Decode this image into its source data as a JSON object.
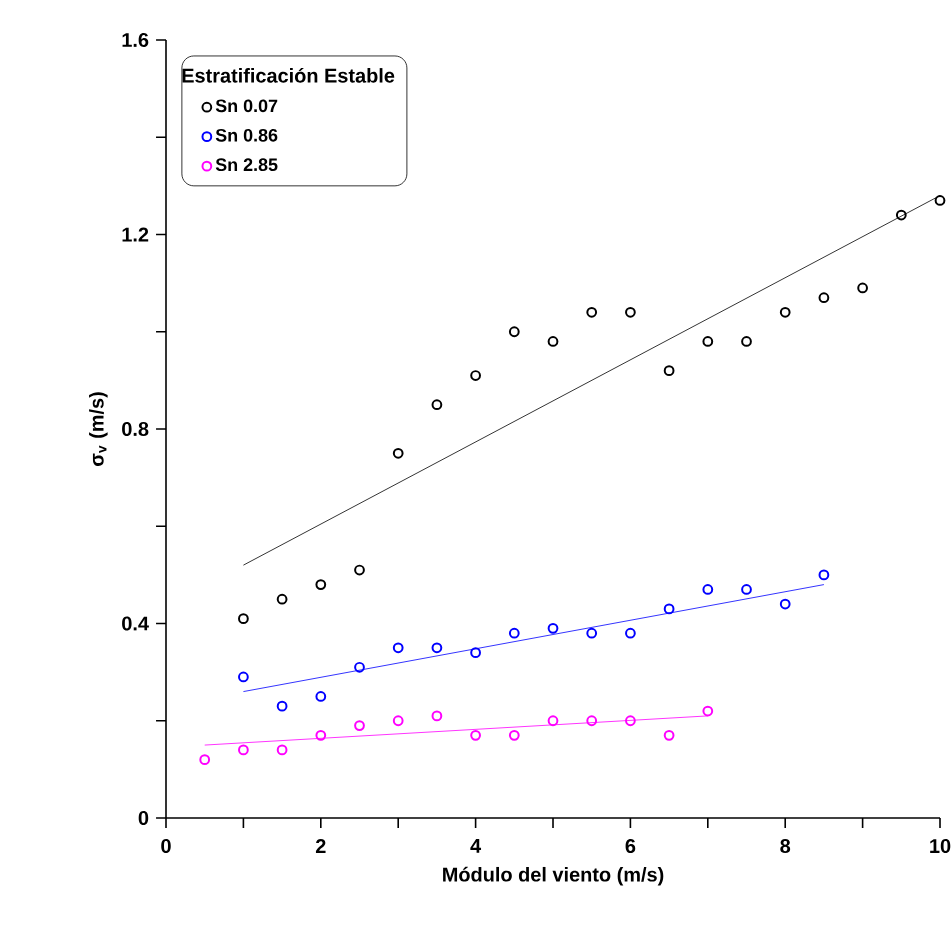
{
  "chart_data": {
    "type": "scatter",
    "xlabel": "Módulo del viento (m/s)",
    "ylabel": "σ$_{v}$ (m/s)",
    "legend_title": "Estratificación Estable",
    "legend": "top left",
    "marker": "circle",
    "grid": false,
    "xlim": [
      0,
      10
    ],
    "ylim": [
      0,
      1.6
    ],
    "xticks": [
      0,
      {
        "value": 1,
        "label": null
      },
      2,
      {
        "value": 3,
        "label": null
      },
      4,
      {
        "value": 5,
        "label": null
      },
      6,
      {
        "value": 7,
        "label": null
      },
      8,
      {
        "value": 9,
        "label": null
      },
      10
    ],
    "yticks": [
      0,
      {
        "value": 0.2,
        "label": null
      },
      0.4,
      {
        "value": 0.6,
        "label": null
      },
      0.8,
      {
        "value": 1.0,
        "label": null
      },
      1.2,
      {
        "value": 1.4,
        "label": null
      },
      1.6
    ],
    "series": [
      {
        "name": "Sn 0.07",
        "color": "#000000",
        "x": [
          1,
          1.5,
          2,
          2.5,
          3,
          3.5,
          4,
          4.5,
          5,
          5.5,
          6,
          6.5,
          7,
          7.5,
          8,
          8.5,
          9,
          9.5,
          10
        ],
        "values": [
          0.41,
          0.45,
          0.48,
          0.51,
          0.75,
          0.85,
          0.91,
          1.0,
          0.98,
          1.04,
          1.04,
          0.92,
          0.98,
          0.98,
          1.04,
          1.07,
          1.09,
          1.24,
          1.27
        ]
      },
      {
        "name": "Sn 0.86",
        "color": "#0000ff",
        "x": [
          1,
          1.5,
          2,
          2.5,
          3,
          3.5,
          4,
          4.5,
          5,
          5.5,
          6,
          6.5,
          7,
          7.5,
          8,
          8.5
        ],
        "values": [
          0.29,
          0.23,
          0.25,
          0.31,
          0.35,
          0.35,
          0.34,
          0.38,
          0.39,
          0.38,
          0.38,
          0.43,
          0.47,
          0.47,
          0.44,
          0.5
        ]
      },
      {
        "name": "Sn 2.85",
        "color": "#ff00ff",
        "x": [
          0.5,
          1,
          1.5,
          2,
          2.5,
          3,
          3.5,
          4,
          4.5,
          5,
          5.5,
          6,
          6.5,
          7
        ],
        "values": [
          0.12,
          0.14,
          0.14,
          0.17,
          0.19,
          0.2,
          0.21,
          0.17,
          0.17,
          0.2,
          0.2,
          0.2,
          0.17,
          0.22
        ]
      },
      {
        "type": "line",
        "marker": "none",
        "color": "#000000",
        "x": [
          1,
          10
        ],
        "values": [
          0.52,
          1.28
        ]
      },
      {
        "type": "line",
        "marker": "none",
        "color": "#0000ff",
        "x": [
          1,
          8.5
        ],
        "values": [
          0.26,
          0.48
        ]
      },
      {
        "type": "line",
        "marker": "none",
        "color": "#ff00ff",
        "x": [
          0.5,
          7
        ],
        "values": [
          0.15,
          0.21
        ]
      }
    ]
  }
}
